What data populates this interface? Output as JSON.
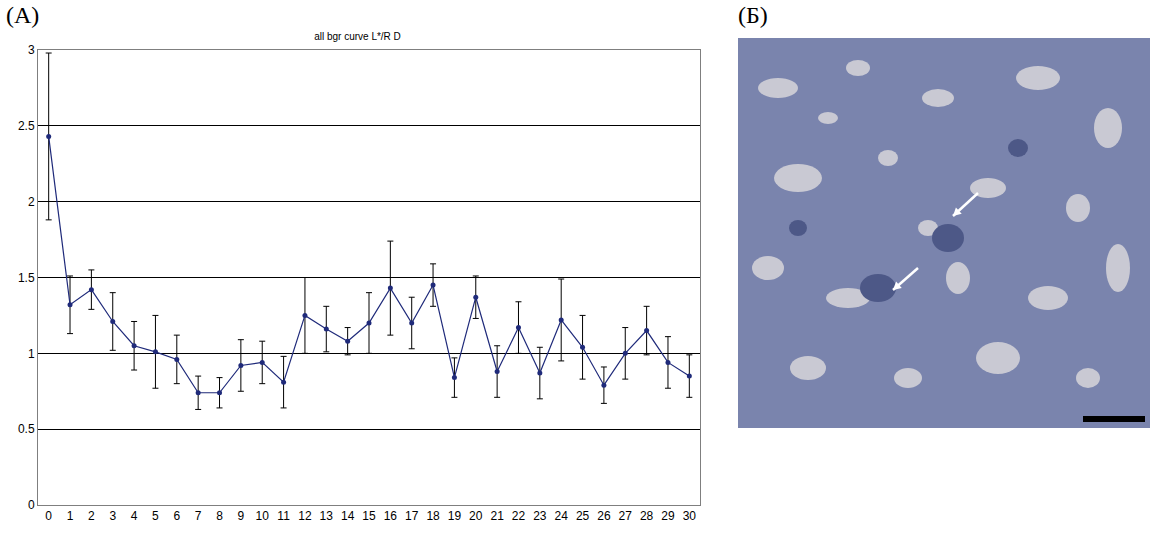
{
  "panel_labels": [
    "(A)",
    "(Б)"
  ],
  "chart_data": {
    "type": "line",
    "title": "all bgr curve L*/R D",
    "x": [
      0,
      1,
      2,
      3,
      4,
      5,
      6,
      7,
      8,
      9,
      10,
      11,
      12,
      13,
      14,
      15,
      16,
      17,
      18,
      19,
      20,
      21,
      22,
      23,
      24,
      25,
      26,
      27,
      28,
      29,
      30
    ],
    "values": [
      2.43,
      1.32,
      1.42,
      1.21,
      1.05,
      1.01,
      0.96,
      0.74,
      0.74,
      0.92,
      0.94,
      0.81,
      1.25,
      1.16,
      1.08,
      1.2,
      1.43,
      1.2,
      1.45,
      0.84,
      1.37,
      0.88,
      1.17,
      0.87,
      1.22,
      1.04,
      0.79,
      1.0,
      1.15,
      0.94,
      0.85
    ],
    "errors": [
      0.55,
      0.19,
      0.13,
      0.19,
      0.16,
      0.24,
      0.16,
      0.11,
      0.1,
      0.17,
      0.14,
      0.17,
      0.25,
      0.15,
      0.09,
      0.2,
      0.31,
      0.17,
      0.14,
      0.13,
      0.14,
      0.17,
      0.17,
      0.17,
      0.27,
      0.21,
      0.12,
      0.17,
      0.16,
      0.17,
      0.14
    ],
    "xlim": [
      -0.5,
      30.5
    ],
    "xticks": [
      0,
      1,
      2,
      3,
      4,
      5,
      6,
      7,
      8,
      9,
      10,
      11,
      12,
      13,
      14,
      15,
      16,
      17,
      18,
      19,
      20,
      21,
      22,
      23,
      24,
      25,
      26,
      27,
      28,
      29,
      30
    ],
    "ylim": [
      0,
      3
    ],
    "yticks": [
      0,
      0.5,
      1,
      1.5,
      2,
      2.5,
      3
    ],
    "grid": true,
    "color": "#1f2a7a",
    "marker": "circle"
  }
}
